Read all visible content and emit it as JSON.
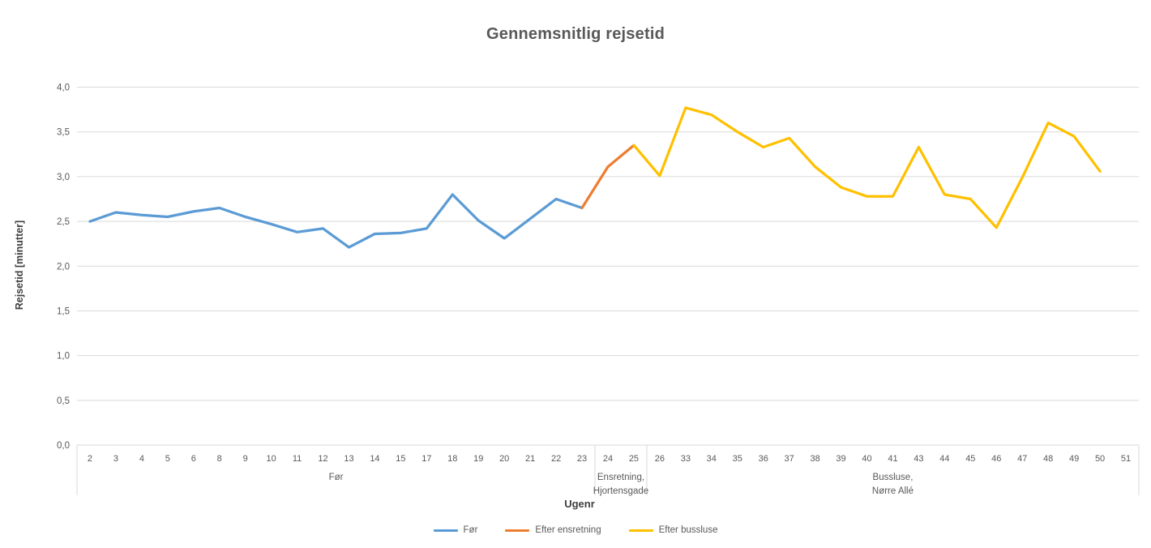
{
  "chart": {
    "title": "Gennemsnitlig rejsetid",
    "y_axis_title": "Rejsetid [minutter]",
    "x_axis_title": "Ugenr"
  },
  "legend": {
    "items": [
      {
        "label": "Før",
        "color": "#5B9BD5"
      },
      {
        "label": "Efter ensretning",
        "color": "#ED7D31"
      },
      {
        "label": "Efter bussluse",
        "color": "#FFC000"
      }
    ]
  },
  "colors": {
    "blue": "#5B9BD5",
    "orange": "#ED7D31",
    "yellow": "#FFC000",
    "gridline": "#D9D9D9",
    "axis_text": "#595959"
  },
  "chart_data": {
    "type": "line",
    "title": "Gennemsnitlig rejsetid",
    "xlabel": "Ugenr",
    "ylabel": "Rejsetid [minutter]",
    "ylim": [
      0.0,
      4.0
    ],
    "y_tick_step": 0.5,
    "y_tick_labels": [
      "0,0",
      "0,5",
      "1,0",
      "1,5",
      "2,0",
      "2,5",
      "3,0",
      "3,5",
      "4,0"
    ],
    "grid": true,
    "legend_position": "bottom",
    "categories": [
      "2",
      "3",
      "4",
      "5",
      "6",
      "8",
      "9",
      "10",
      "11",
      "12",
      "13",
      "14",
      "15",
      "17",
      "18",
      "19",
      "20",
      "21",
      "22",
      "23",
      "24",
      "25",
      "26",
      "33",
      "34",
      "35",
      "36",
      "37",
      "38",
      "39",
      "40",
      "41",
      "43",
      "44",
      "45",
      "46",
      "47",
      "48",
      "49",
      "50",
      "51"
    ],
    "category_groups": [
      {
        "label_lines": [
          "Før"
        ],
        "start_index": 0,
        "end_index": 19
      },
      {
        "label_lines": [
          "Ensretning,",
          "Hjortensgade"
        ],
        "start_index": 20,
        "end_index": 21
      },
      {
        "label_lines": [
          "Bussluse,",
          "Nørre Allé"
        ],
        "start_index": 22,
        "end_index": 40
      }
    ],
    "series": [
      {
        "name": "Før",
        "color": "#5B9BD5",
        "points": [
          [
            "2",
            2.5
          ],
          [
            "3",
            2.6
          ],
          [
            "4",
            2.57
          ],
          [
            "5",
            2.55
          ],
          [
            "6",
            2.61
          ],
          [
            "8",
            2.65
          ],
          [
            "9",
            2.55
          ],
          [
            "10",
            2.47
          ],
          [
            "11",
            2.38
          ],
          [
            "12",
            2.42
          ],
          [
            "13",
            2.21
          ],
          [
            "14",
            2.36
          ],
          [
            "15",
            2.37
          ],
          [
            "17",
            2.42
          ],
          [
            "18",
            2.8
          ],
          [
            "19",
            2.51
          ],
          [
            "20",
            2.31
          ],
          [
            "21",
            2.53
          ],
          [
            "22",
            2.75
          ],
          [
            "23",
            2.65
          ]
        ]
      },
      {
        "name": "Efter ensretning",
        "color": "#ED7D31",
        "points": [
          [
            "23",
            2.65
          ],
          [
            "24",
            3.11
          ],
          [
            "25",
            3.35
          ]
        ]
      },
      {
        "name": "Efter bussluse",
        "color": "#FFC000",
        "points": [
          [
            "25",
            3.35
          ],
          [
            "26",
            3.01
          ],
          [
            "33",
            3.77
          ],
          [
            "34",
            3.69
          ],
          [
            "35",
            3.5
          ],
          [
            "36",
            3.33
          ],
          [
            "37",
            3.43
          ],
          [
            "38",
            3.11
          ],
          [
            "39",
            2.88
          ],
          [
            "40",
            2.78
          ],
          [
            "41",
            2.78
          ],
          [
            "43",
            3.33
          ],
          [
            "44",
            2.8
          ],
          [
            "45",
            2.75
          ],
          [
            "46",
            2.43
          ],
          [
            "47",
            2.99
          ],
          [
            "48",
            3.6
          ],
          [
            "49",
            3.45
          ],
          [
            "50",
            3.06
          ]
        ]
      }
    ]
  }
}
